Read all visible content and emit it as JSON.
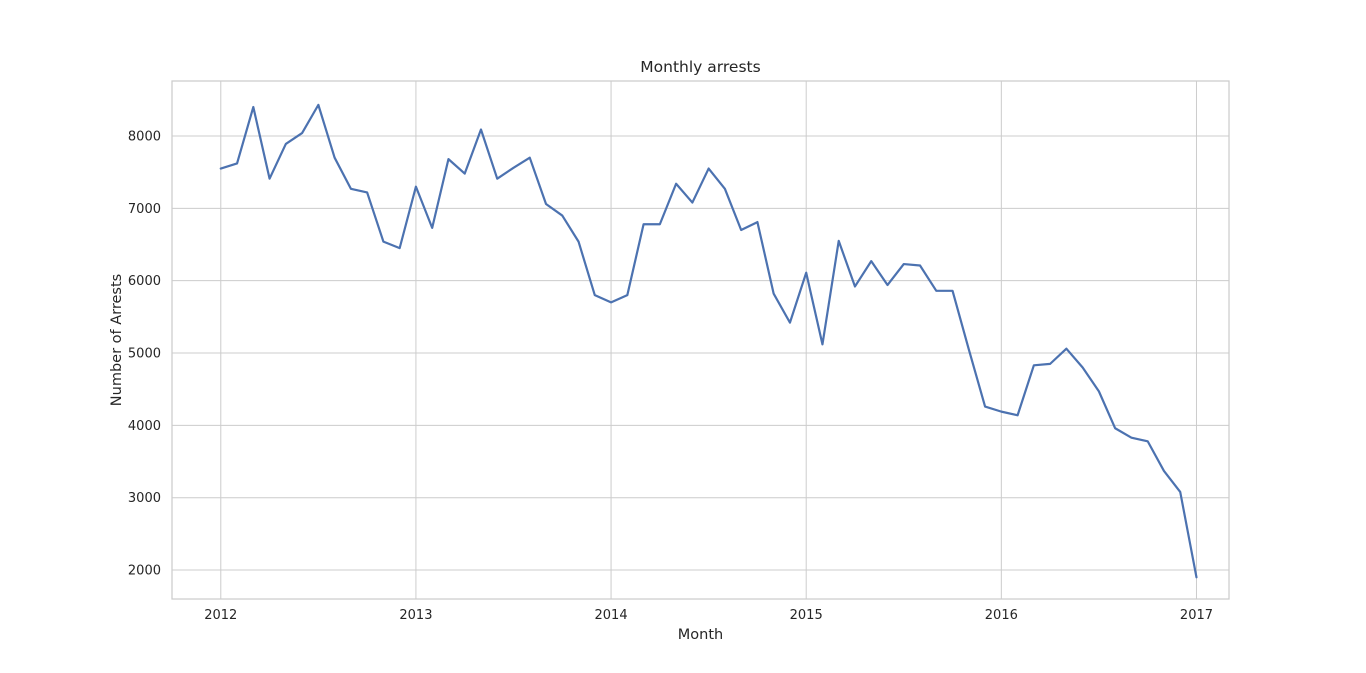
{
  "chart_data": {
    "type": "line",
    "title": "Monthly arrests",
    "xlabel": "Month",
    "ylabel": "Number of Arrests",
    "xlim": [
      "2011-10",
      "2017-03"
    ],
    "ylim": [
      1600,
      8760
    ],
    "grid": true,
    "x_ticks": [
      "2012",
      "2013",
      "2014",
      "2015",
      "2016",
      "2017"
    ],
    "y_ticks": [
      2000,
      3000,
      4000,
      5000,
      6000,
      7000,
      8000
    ],
    "series": [
      {
        "color": "#4c72b0",
        "x": [
          "2012-01",
          "2012-02",
          "2012-03",
          "2012-04",
          "2012-05",
          "2012-06",
          "2012-07",
          "2012-08",
          "2012-09",
          "2012-10",
          "2012-11",
          "2012-12",
          "2013-01",
          "2013-02",
          "2013-03",
          "2013-04",
          "2013-05",
          "2013-06",
          "2013-07",
          "2013-08",
          "2013-09",
          "2013-10",
          "2013-11",
          "2013-12",
          "2014-01",
          "2014-02",
          "2014-03",
          "2014-04",
          "2014-05",
          "2014-06",
          "2014-07",
          "2014-08",
          "2014-09",
          "2014-10",
          "2014-11",
          "2014-12",
          "2015-01",
          "2015-02",
          "2015-03",
          "2015-04",
          "2015-05",
          "2015-06",
          "2015-07",
          "2015-08",
          "2015-09",
          "2015-10",
          "2015-11",
          "2015-12",
          "2016-01",
          "2016-02",
          "2016-03",
          "2016-04",
          "2016-05",
          "2016-06",
          "2016-07",
          "2016-08",
          "2016-09",
          "2016-10",
          "2016-11",
          "2016-12",
          "2017-01"
        ],
        "values": [
          7550,
          7620,
          8400,
          7410,
          7890,
          8040,
          8430,
          7700,
          7270,
          7220,
          6540,
          6450,
          7300,
          6730,
          7680,
          7480,
          8090,
          7410,
          7560,
          7700,
          7060,
          6900,
          6540,
          5800,
          5700,
          5800,
          6780,
          6780,
          7340,
          7080,
          7550,
          7270,
          6700,
          6810,
          5820,
          5420,
          6110,
          5120,
          6550,
          5920,
          6270,
          5940,
          6230,
          6210,
          5860,
          5860,
          5050,
          4260,
          4190,
          4140,
          4830,
          4850,
          5060,
          4800,
          4470,
          3960,
          3830,
          3780,
          3370,
          3080,
          1900
        ]
      }
    ]
  }
}
